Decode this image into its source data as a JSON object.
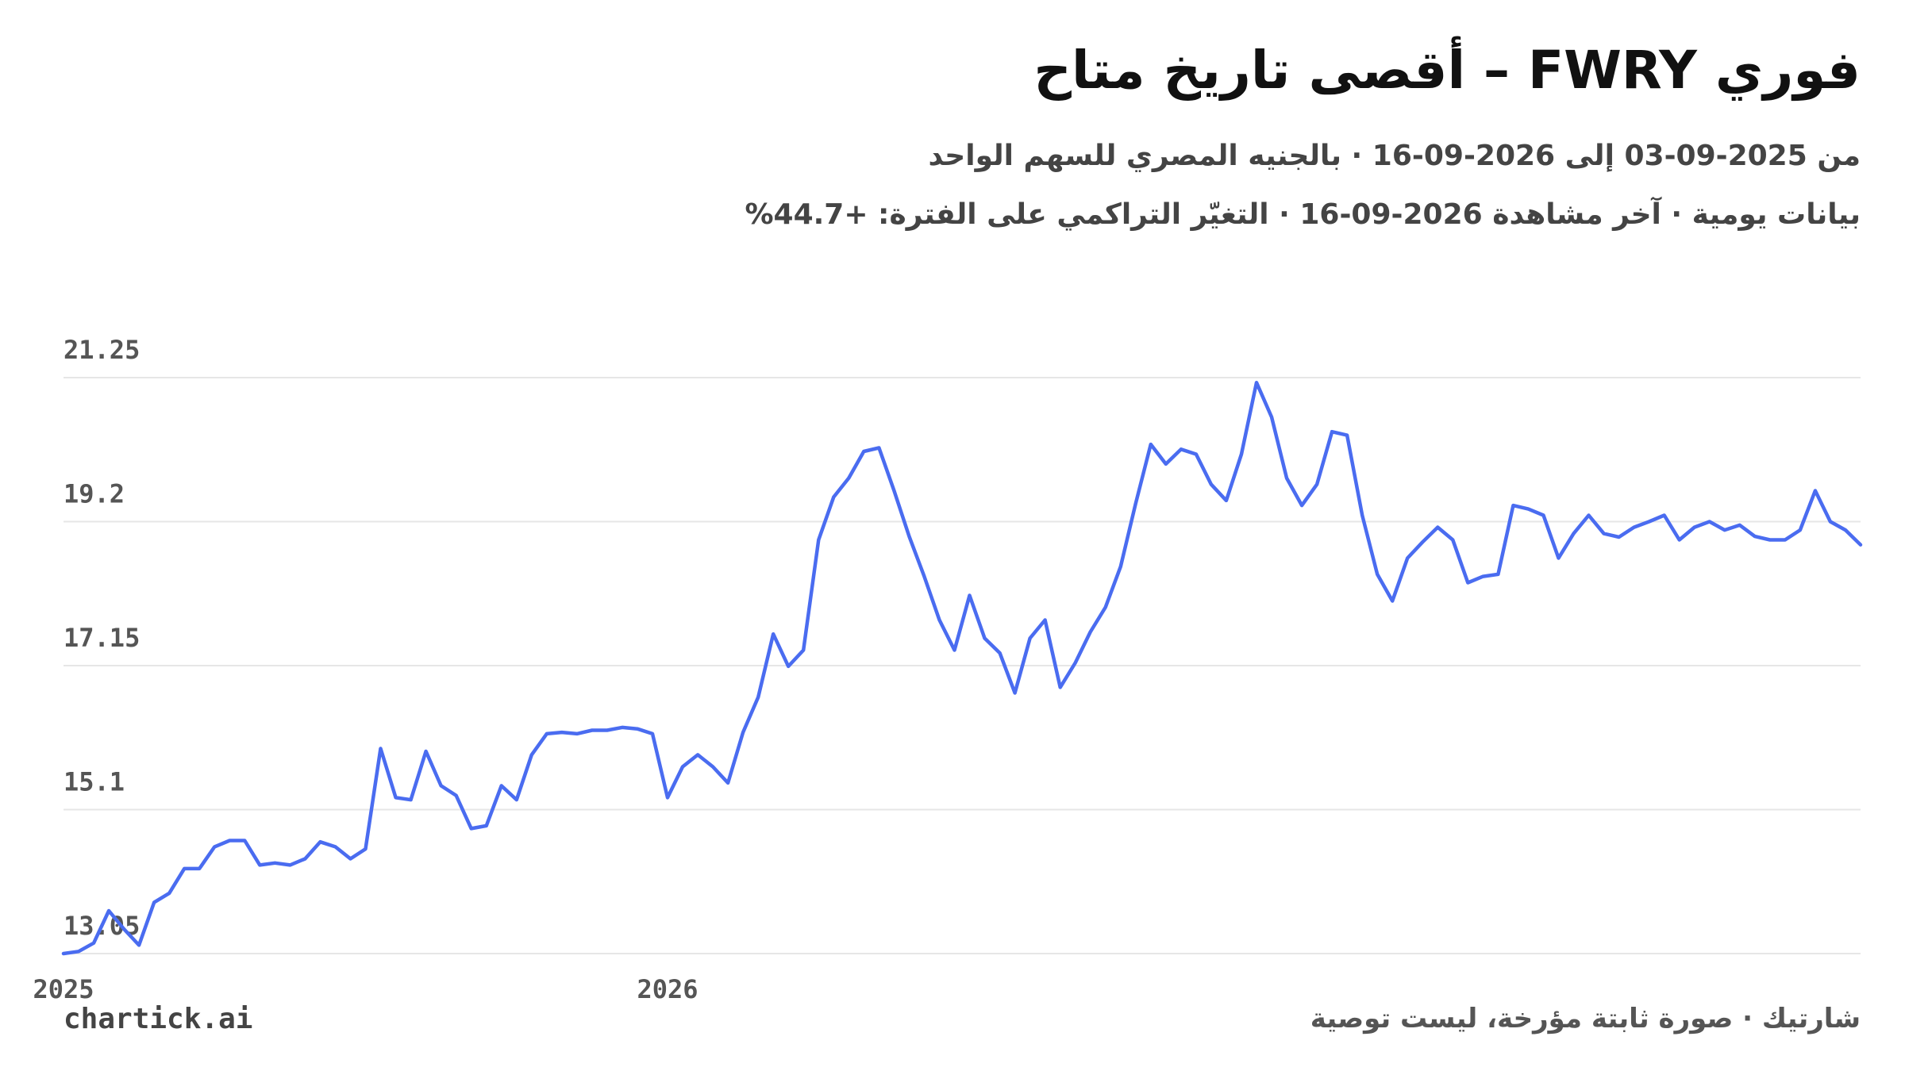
{
  "chart_data": {
    "type": "line",
    "title": "فوري FWRY – أقصى تاريخ متاح",
    "subtitle": "من 2025-09-03 إلى 2026-09-16 · بالجنيه المصري للسهم الواحد",
    "note": "بيانات يومية · آخر مشاهدة 2026-09-16 · التغيّر التراكمي على الفترة: +44.7%",
    "watermark": "chartick.ai",
    "source": "شارتيك · صورة ثابتة مؤرخة، ليست توصية",
    "color": "#4a6cf0",
    "grid": true,
    "xlim": [
      0,
      119
    ],
    "xticks": [
      {
        "value": 0,
        "label": "2025"
      },
      {
        "value": 40,
        "label": "2026"
      }
    ],
    "ylim": [
      13.05,
      21.25
    ],
    "yticks": [
      13.05,
      15.1,
      17.15,
      19.2,
      21.25
    ],
    "values": [
      13.05,
      13.08,
      13.2,
      13.66,
      13.4,
      13.17,
      13.78,
      13.91,
      14.26,
      14.26,
      14.57,
      14.66,
      14.66,
      14.31,
      14.34,
      14.31,
      14.4,
      14.64,
      14.57,
      14.4,
      14.54,
      15.97,
      15.27,
      15.24,
      15.93,
      15.44,
      15.3,
      14.83,
      14.87,
      15.44,
      15.24,
      15.88,
      16.18,
      16.2,
      16.18,
      16.23,
      16.23,
      16.27,
      16.25,
      16.18,
      15.27,
      15.71,
      15.88,
      15.71,
      15.48,
      16.2,
      16.7,
      17.6,
      17.14,
      17.37,
      18.94,
      19.55,
      19.82,
      20.2,
      20.25,
      19.64,
      18.99,
      18.42,
      17.8,
      17.37,
      18.15,
      17.54,
      17.33,
      16.76,
      17.54,
      17.8,
      16.84,
      17.19,
      17.63,
      17.98,
      18.56,
      19.46,
      20.3,
      20.02,
      20.23,
      20.16,
      19.73,
      19.5,
      20.16,
      21.18,
      20.69,
      19.82,
      19.43,
      19.73,
      20.48,
      20.43,
      19.29,
      18.45,
      18.07,
      18.68,
      18.91,
      19.12,
      18.94,
      18.33,
      18.42,
      18.45,
      19.43,
      19.38,
      19.29,
      18.68,
      19.03,
      19.29,
      19.03,
      18.98,
      19.12,
      19.2,
      19.29,
      18.94,
      19.12,
      19.2,
      19.08,
      19.15,
      18.99,
      18.94,
      18.94,
      19.08,
      19.64,
      19.2,
      19.08,
      18.87
    ]
  }
}
